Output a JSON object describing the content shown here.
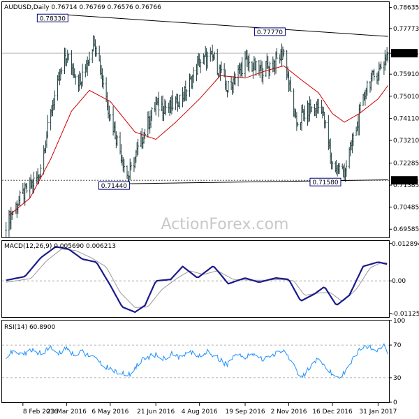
{
  "chart_data": [
    {
      "type": "ohlc",
      "panel": "price",
      "title": "AUDUSD,Daily  0.76714 0.76769 0.76576 0.76766",
      "ylim": [
        0.6925,
        0.7885
      ],
      "y_ticks": [
        0.69585,
        0.70485,
        0.71385,
        0.72285,
        0.7321,
        0.7411,
        0.7501,
        0.7591,
        0.76766,
        0.77773,
        0.78635
      ],
      "y_tick_labels": [
        "0.69585",
        "0.70485",
        "0.71385",
        "0.72285",
        "0.73210",
        "0.74110",
        "0.75010",
        "0.75910",
        "0.76766",
        "0.77773",
        "0.78635"
      ],
      "current_price": 0.76766,
      "current_price_label": "0.76766",
      "support_level": 0.7158,
      "support_label": "0.71580",
      "annotations": [
        {
          "label": "0.78330",
          "x": "2016-03-23",
          "y": 0.7833
        },
        {
          "label": "0.77770",
          "x": "2016-10-28",
          "y": 0.7777
        },
        {
          "label": "0.71440",
          "x": "2016-05-24",
          "y": 0.7144
        },
        {
          "label": "0.71580",
          "x": "2016-12-23",
          "y": 0.7158
        }
      ],
      "trendlines": [
        {
          "name": "resistance",
          "from": {
            "x": "2016-03-23",
            "y": 0.7833
          },
          "to": {
            "x": "2017-02-10",
            "y": 0.7745
          }
        },
        {
          "name": "support",
          "from": {
            "x": "2016-05-24",
            "y": 0.7144
          },
          "to": {
            "x": "2017-02-10",
            "y": 0.716
          }
        }
      ],
      "x_ticks": [
        "2016-02-08",
        "2016-03-23",
        "2016-05-06",
        "2016-06-21",
        "2016-08-04",
        "2016-09-19",
        "2016-11-02",
        "2016-12-16",
        "2017-01-31"
      ],
      "x_tick_labels": [
        "8 Feb 2016",
        "23 Mar 2016",
        "6 May 2016",
        "21 Jun 2016",
        "4 Aug 2016",
        "19 Sep 2016",
        "2 Nov 2016",
        "16 Dec 2016",
        "31 Jan 2017"
      ],
      "moving_average": [
        {
          "x": "2016-01-25",
          "y": 0.7015
        },
        {
          "x": "2016-02-15",
          "y": 0.7085
        },
        {
          "x": "2016-03-07",
          "y": 0.7245
        },
        {
          "x": "2016-03-28",
          "y": 0.744
        },
        {
          "x": "2016-04-15",
          "y": 0.7525
        },
        {
          "x": "2016-05-06",
          "y": 0.748
        },
        {
          "x": "2016-05-31",
          "y": 0.7355
        },
        {
          "x": "2016-06-21",
          "y": 0.7325
        },
        {
          "x": "2016-07-11",
          "y": 0.7395
        },
        {
          "x": "2016-08-04",
          "y": 0.749
        },
        {
          "x": "2016-08-25",
          "y": 0.7585
        },
        {
          "x": "2016-09-19",
          "y": 0.7575
        },
        {
          "x": "2016-10-10",
          "y": 0.7605
        },
        {
          "x": "2016-10-28",
          "y": 0.7625
        },
        {
          "x": "2016-11-14",
          "y": 0.757
        },
        {
          "x": "2016-12-02",
          "y": 0.7515
        },
        {
          "x": "2016-12-16",
          "y": 0.743
        },
        {
          "x": "2016-12-28",
          "y": 0.7395
        },
        {
          "x": "2017-01-12",
          "y": 0.743
        },
        {
          "x": "2017-01-31",
          "y": 0.749
        },
        {
          "x": "2017-02-10",
          "y": 0.7545
        }
      ],
      "closes": [
        {
          "x": "2016-01-22",
          "y": 0.6985
        },
        {
          "x": "2016-02-08",
          "y": 0.71
        },
        {
          "x": "2016-02-24",
          "y": 0.7175
        },
        {
          "x": "2016-03-09",
          "y": 0.747
        },
        {
          "x": "2016-03-23",
          "y": 0.767
        },
        {
          "x": "2016-04-06",
          "y": 0.755
        },
        {
          "x": "2016-04-20",
          "y": 0.774
        },
        {
          "x": "2016-05-06",
          "y": 0.742
        },
        {
          "x": "2016-05-24",
          "y": 0.7165
        },
        {
          "x": "2016-06-07",
          "y": 0.733
        },
        {
          "x": "2016-06-21",
          "y": 0.7465
        },
        {
          "x": "2016-07-05",
          "y": 0.7455
        },
        {
          "x": "2016-07-20",
          "y": 0.751
        },
        {
          "x": "2016-08-04",
          "y": 0.764
        },
        {
          "x": "2016-08-18",
          "y": 0.766
        },
        {
          "x": "2016-09-01",
          "y": 0.753
        },
        {
          "x": "2016-09-19",
          "y": 0.764
        },
        {
          "x": "2016-10-05",
          "y": 0.7605
        },
        {
          "x": "2016-10-19",
          "y": 0.764
        },
        {
          "x": "2016-10-28",
          "y": 0.768
        },
        {
          "x": "2016-11-09",
          "y": 0.739
        },
        {
          "x": "2016-11-22",
          "y": 0.7445
        },
        {
          "x": "2016-12-05",
          "y": 0.746
        },
        {
          "x": "2016-12-16",
          "y": 0.722
        },
        {
          "x": "2016-12-28",
          "y": 0.7195
        },
        {
          "x": "2017-01-09",
          "y": 0.737
        },
        {
          "x": "2017-01-20",
          "y": 0.755
        },
        {
          "x": "2017-01-31",
          "y": 0.76
        },
        {
          "x": "2017-02-10",
          "y": 0.7677
        }
      ]
    },
    {
      "type": "line",
      "panel": "macd",
      "title": "MACD(12,26,9) 0.005690 0.006213",
      "ylim": [
        -0.0125,
        0.0138
      ],
      "y_ticks": [
        0.012894,
        0.0,
        -0.011253
      ],
      "y_tick_labels": [
        "0.012894",
        "0.00",
        "-0.011253"
      ],
      "series": [
        {
          "name": "",
          "color": "#1a1a8c",
          "values": [
            {
              "x": "2016-01-22",
              "y": 0.0002
            },
            {
              "x": "2016-02-10",
              "y": 0.0015
            },
            {
              "x": "2016-02-26",
              "y": 0.008
            },
            {
              "x": "2016-03-12",
              "y": 0.0118
            },
            {
              "x": "2016-03-25",
              "y": 0.011
            },
            {
              "x": "2016-04-08",
              "y": 0.0075
            },
            {
              "x": "2016-04-22",
              "y": 0.0065
            },
            {
              "x": "2016-05-06",
              "y": -0.0015
            },
            {
              "x": "2016-05-18",
              "y": -0.009
            },
            {
              "x": "2016-05-31",
              "y": -0.0108
            },
            {
              "x": "2016-06-10",
              "y": -0.0085
            },
            {
              "x": "2016-06-21",
              "y": 0.0
            },
            {
              "x": "2016-07-06",
              "y": 0.0005
            },
            {
              "x": "2016-07-18",
              "y": 0.005
            },
            {
              "x": "2016-08-02",
              "y": 0.001
            },
            {
              "x": "2016-08-18",
              "y": 0.0052
            },
            {
              "x": "2016-09-02",
              "y": -0.001
            },
            {
              "x": "2016-09-19",
              "y": 0.001
            },
            {
              "x": "2016-10-03",
              "y": -0.0005
            },
            {
              "x": "2016-10-20",
              "y": 0.001
            },
            {
              "x": "2016-11-02",
              "y": 0.0005
            },
            {
              "x": "2016-11-14",
              "y": -0.007
            },
            {
              "x": "2016-11-28",
              "y": -0.0045
            },
            {
              "x": "2016-12-08",
              "y": -0.002
            },
            {
              "x": "2016-12-20",
              "y": -0.0085
            },
            {
              "x": "2017-01-02",
              "y": -0.005
            },
            {
              "x": "2017-01-16",
              "y": 0.005
            },
            {
              "x": "2017-01-31",
              "y": 0.0065
            },
            {
              "x": "2017-02-10",
              "y": 0.0057
            }
          ]
        },
        {
          "name": "",
          "color": "#999999",
          "values": [
            {
              "x": "2016-01-22",
              "y": -0.0005
            },
            {
              "x": "2016-02-16",
              "y": 0.0008
            },
            {
              "x": "2016-03-03",
              "y": 0.007
            },
            {
              "x": "2016-03-18",
              "y": 0.011
            },
            {
              "x": "2016-04-01",
              "y": 0.0105
            },
            {
              "x": "2016-04-18",
              "y": 0.0078
            },
            {
              "x": "2016-05-02",
              "y": 0.0048
            },
            {
              "x": "2016-05-16",
              "y": -0.004
            },
            {
              "x": "2016-05-31",
              "y": -0.0092
            },
            {
              "x": "2016-06-13",
              "y": -0.009
            },
            {
              "x": "2016-06-27",
              "y": -0.003
            },
            {
              "x": "2016-07-12",
              "y": 0.0008
            },
            {
              "x": "2016-07-25",
              "y": 0.0035
            },
            {
              "x": "2016-08-08",
              "y": 0.0022
            },
            {
              "x": "2016-08-22",
              "y": 0.0035
            },
            {
              "x": "2016-09-07",
              "y": 0.0005
            },
            {
              "x": "2016-09-22",
              "y": 0.0003
            },
            {
              "x": "2016-10-07",
              "y": 0.0002
            },
            {
              "x": "2016-10-25",
              "y": 0.0005
            },
            {
              "x": "2016-11-07",
              "y": 0.0
            },
            {
              "x": "2016-11-18",
              "y": -0.005
            },
            {
              "x": "2016-12-02",
              "y": -0.0042
            },
            {
              "x": "2016-12-14",
              "y": -0.004
            },
            {
              "x": "2016-12-26",
              "y": -0.0072
            },
            {
              "x": "2017-01-09",
              "y": -0.003
            },
            {
              "x": "2017-01-23",
              "y": 0.0045
            },
            {
              "x": "2017-02-03",
              "y": 0.0063
            },
            {
              "x": "2017-02-10",
              "y": 0.0062
            }
          ]
        }
      ]
    },
    {
      "type": "line",
      "panel": "rsi",
      "title": "RSI(14) 60.8900",
      "ylim": [
        0,
        100
      ],
      "y_ticks": [
        100,
        70,
        30,
        0
      ],
      "y_tick_labels": [
        "100",
        "70",
        "30",
        "0"
      ],
      "levels": [
        70,
        30
      ],
      "series": [
        {
          "name": "",
          "color": "#1e90ff",
          "values": [
            {
              "x": "2016-01-22",
              "y": 56
            },
            {
              "x": "2016-01-29",
              "y": 62
            },
            {
              "x": "2016-02-08",
              "y": 58
            },
            {
              "x": "2016-02-17",
              "y": 64
            },
            {
              "x": "2016-02-26",
              "y": 60
            },
            {
              "x": "2016-03-07",
              "y": 66
            },
            {
              "x": "2016-03-16",
              "y": 60
            },
            {
              "x": "2016-03-23",
              "y": 67
            },
            {
              "x": "2016-03-31",
              "y": 58
            },
            {
              "x": "2016-04-08",
              "y": 62
            },
            {
              "x": "2016-04-18",
              "y": 55
            },
            {
              "x": "2016-04-26",
              "y": 48
            },
            {
              "x": "2016-05-06",
              "y": 40
            },
            {
              "x": "2016-05-16",
              "y": 36
            },
            {
              "x": "2016-05-24",
              "y": 32
            },
            {
              "x": "2016-06-01",
              "y": 44
            },
            {
              "x": "2016-06-10",
              "y": 54
            },
            {
              "x": "2016-06-20",
              "y": 58
            },
            {
              "x": "2016-06-28",
              "y": 52
            },
            {
              "x": "2016-07-07",
              "y": 60
            },
            {
              "x": "2016-07-15",
              "y": 54
            },
            {
              "x": "2016-07-25",
              "y": 62
            },
            {
              "x": "2016-08-04",
              "y": 56
            },
            {
              "x": "2016-08-12",
              "y": 62
            },
            {
              "x": "2016-08-22",
              "y": 55
            },
            {
              "x": "2016-08-31",
              "y": 46
            },
            {
              "x": "2016-09-09",
              "y": 58
            },
            {
              "x": "2016-09-19",
              "y": 54
            },
            {
              "x": "2016-09-28",
              "y": 60
            },
            {
              "x": "2016-10-07",
              "y": 52
            },
            {
              "x": "2016-10-17",
              "y": 58
            },
            {
              "x": "2016-10-28",
              "y": 64
            },
            {
              "x": "2016-11-07",
              "y": 46
            },
            {
              "x": "2016-11-14",
              "y": 30
            },
            {
              "x": "2016-11-22",
              "y": 40
            },
            {
              "x": "2016-12-01",
              "y": 52
            },
            {
              "x": "2016-12-08",
              "y": 42
            },
            {
              "x": "2016-12-16",
              "y": 35
            },
            {
              "x": "2016-12-23",
              "y": 28
            },
            {
              "x": "2017-01-03",
              "y": 48
            },
            {
              "x": "2017-01-11",
              "y": 62
            },
            {
              "x": "2017-01-20",
              "y": 68
            },
            {
              "x": "2017-01-30",
              "y": 65
            },
            {
              "x": "2017-02-06",
              "y": 70
            },
            {
              "x": "2017-02-10",
              "y": 61
            }
          ]
        }
      ]
    }
  ],
  "watermark": "ActionForex.com",
  "colors": {
    "bars": "#1f3d3d",
    "moving_average": "#cc0000",
    "macd": "#1a1a8c",
    "signal": "#999999",
    "rsi": "#1e90ff",
    "trendline": "#000000",
    "annotation_box": "#000080"
  }
}
